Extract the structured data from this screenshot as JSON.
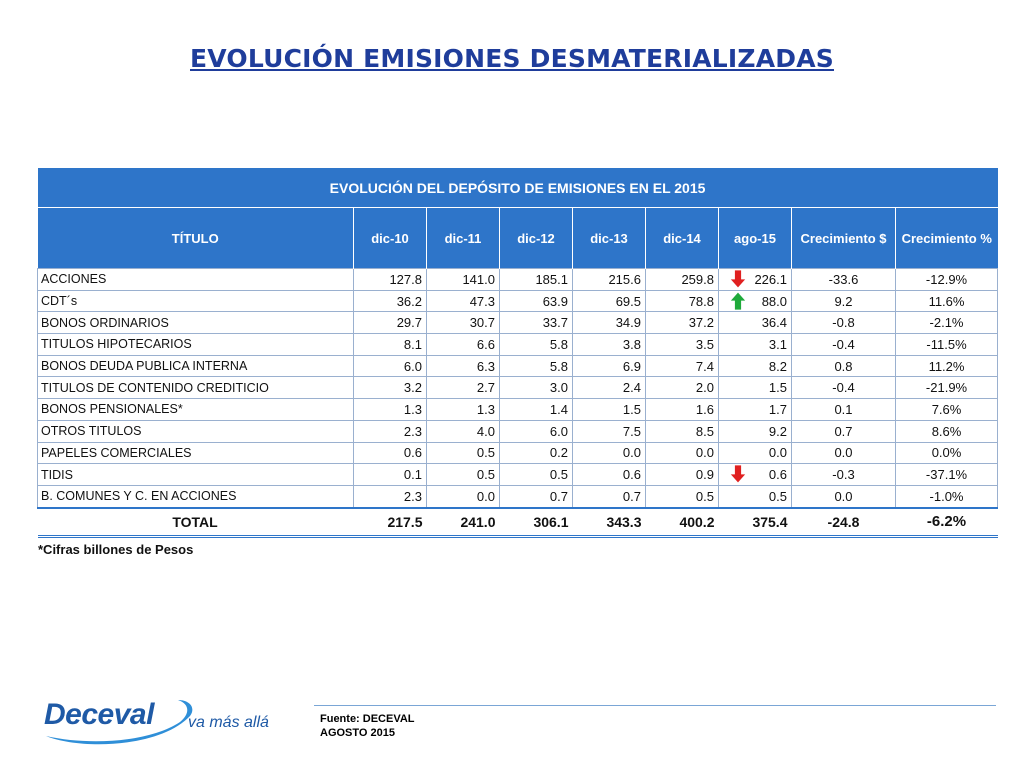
{
  "slide": {
    "title": "EVOLUCIÓN EMISIONES DESMATERIALIZADAS"
  },
  "table": {
    "banner": "EVOLUCIÓN DEL DEPÓSITO DE EMISIONES EN EL 2015",
    "headers": [
      "TÍTULO",
      "dic-10",
      "dic-11",
      "dic-12",
      "dic-13",
      "dic-14",
      "ago-15",
      "Crecimiento $",
      "Crecimiento %"
    ],
    "rows": [
      {
        "name": "ACCIONES",
        "v": [
          "127.8",
          "141.0",
          "185.1",
          "215.6",
          "259.8",
          "226.1"
        ],
        "g": "-33.6",
        "p": "-12.9%",
        "arrow": "down"
      },
      {
        "name": "CDT´s",
        "v": [
          "36.2",
          "47.3",
          "63.9",
          "69.5",
          "78.8",
          "88.0"
        ],
        "g": "9.2",
        "p": "11.6%",
        "arrow": "up"
      },
      {
        "name": "BONOS ORDINARIOS",
        "v": [
          "29.7",
          "30.7",
          "33.7",
          "34.9",
          "37.2",
          "36.4"
        ],
        "g": "-0.8",
        "p": "-2.1%",
        "arrow": ""
      },
      {
        "name": "TITULOS HIPOTECARIOS",
        "v": [
          "8.1",
          "6.6",
          "5.8",
          "3.8",
          "3.5",
          "3.1"
        ],
        "g": "-0.4",
        "p": "-11.5%",
        "arrow": ""
      },
      {
        "name": "BONOS DEUDA PUBLICA INTERNA",
        "v": [
          "6.0",
          "6.3",
          "5.8",
          "6.9",
          "7.4",
          "8.2"
        ],
        "g": "0.8",
        "p": "11.2%",
        "arrow": ""
      },
      {
        "name": "TITULOS DE CONTENIDO CREDITICIO",
        "v": [
          "3.2",
          "2.7",
          "3.0",
          "2.4",
          "2.0",
          "1.5"
        ],
        "g": "-0.4",
        "p": "-21.9%",
        "arrow": ""
      },
      {
        "name": "BONOS PENSIONALES*",
        "v": [
          "1.3",
          "1.3",
          "1.4",
          "1.5",
          "1.6",
          "1.7"
        ],
        "g": "0.1",
        "p": "7.6%",
        "arrow": ""
      },
      {
        "name": "OTROS TITULOS",
        "v": [
          "2.3",
          "4.0",
          "6.0",
          "7.5",
          "8.5",
          "9.2"
        ],
        "g": "0.7",
        "p": "8.6%",
        "arrow": ""
      },
      {
        "name": "PAPELES COMERCIALES",
        "v": [
          "0.6",
          "0.5",
          "0.2",
          "0.0",
          "0.0",
          "0.0"
        ],
        "g": "0.0",
        "p": "0.0%",
        "arrow": ""
      },
      {
        "name": "TIDIS",
        "v": [
          "0.1",
          "0.5",
          "0.5",
          "0.6",
          "0.9",
          "0.6"
        ],
        "g": "-0.3",
        "p": "-37.1%",
        "arrow": "down"
      },
      {
        "name": "B. COMUNES Y C. EN ACCIONES",
        "v": [
          "2.3",
          "0.0",
          "0.7",
          "0.7",
          "0.5",
          "0.5"
        ],
        "g": "0.0",
        "p": "-1.0%",
        "arrow": ""
      }
    ],
    "total": {
      "name": "TOTAL",
      "v": [
        "217.5",
        "241.0",
        "306.1",
        "343.3",
        "400.2",
        "375.4"
      ],
      "g": "-24.8",
      "p": "-6.2%"
    }
  },
  "footnote": "*Cifras billones de Pesos",
  "source": {
    "line1": "Fuente: DECEVAL",
    "line2": "AGOSTO 2015"
  },
  "logo": {
    "word": "Deceval",
    "tagline": "va más allá"
  },
  "colors": {
    "header_bg": "#2e75c9",
    "title": "#1f3d9b",
    "arrow_down": "#e02020",
    "arrow_up": "#1faa3a"
  }
}
